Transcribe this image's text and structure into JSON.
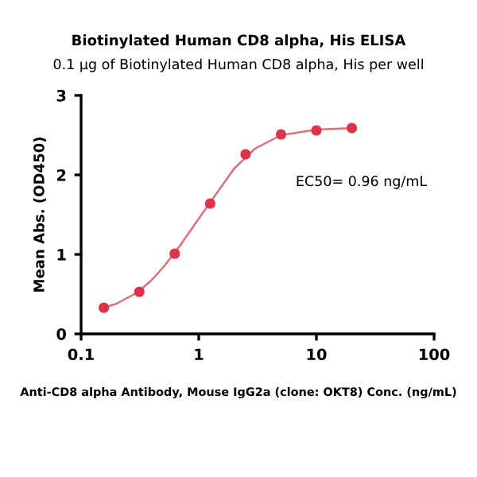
{
  "chart_data": {
    "type": "scatter",
    "title": "Biotinylated Human CD8 alpha, His ELISA",
    "subtitle": "0.1 μg of Biotinylated Human CD8 alpha, His per well",
    "xlabel": "Anti-CD8 alpha Antibody, Mouse IgG2a (clone: OKT8) Conc. (ng/mL)",
    "ylabel": "Mean Abs. (OD450)",
    "annotations": [
      "EC50= 0.96 ng/mL"
    ],
    "log": "x",
    "xlim": [
      0.1,
      100
    ],
    "xticks": [
      0.1,
      1,
      10,
      100
    ],
    "ylim": [
      0,
      3
    ],
    "yticks": [
      0,
      1,
      2,
      3
    ],
    "grid": false,
    "legend": false,
    "series": [
      {
        "marker": "circle",
        "color": "#e0334a",
        "x": [
          0.156,
          0.3125,
          0.625,
          1.25,
          2.5,
          5,
          10,
          20
        ],
        "values": [
          0.33,
          0.53,
          1.01,
          1.64,
          2.26,
          2.51,
          2.56,
          2.59
        ]
      },
      {
        "type": "line",
        "marker": "none",
        "color": "#e36d7a",
        "x": [
          0.15,
          0.2,
          0.3,
          0.4,
          0.5,
          0.7,
          1,
          1.5,
          2,
          3,
          5,
          10,
          20
        ],
        "values": [
          0.32,
          0.38,
          0.52,
          0.68,
          0.84,
          1.12,
          1.45,
          1.82,
          2.08,
          2.33,
          2.5,
          2.57,
          2.59
        ]
      }
    ]
  }
}
